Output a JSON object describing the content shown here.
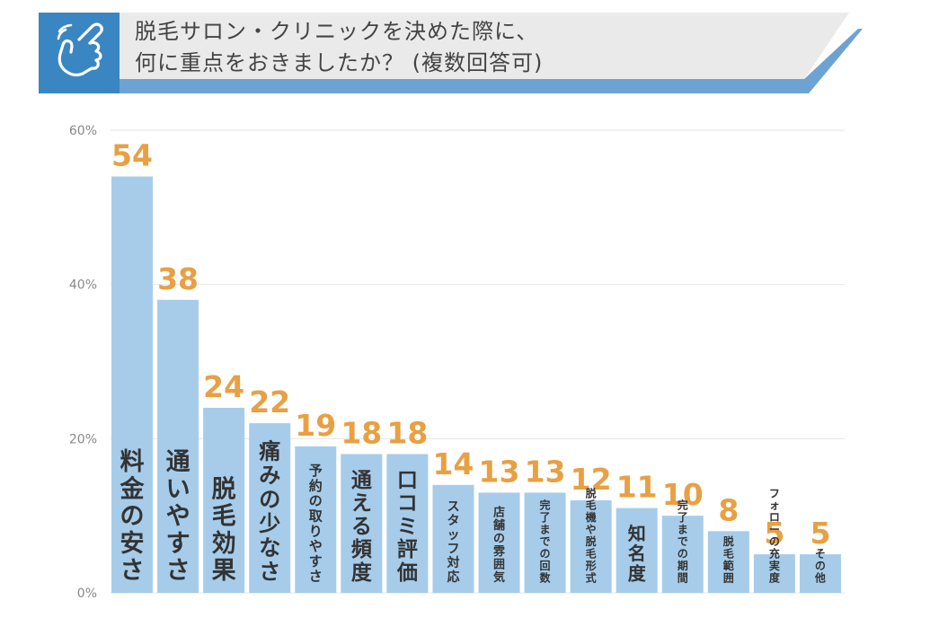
{
  "header": {
    "question_line1": "脱毛サロン・クリニックを決めた際に、",
    "question_line2": "何に重点をおきましたか？ (複数回答可)",
    "icon": "pointing-hand-icon",
    "colors": {
      "icon_bg": "#3A86C2",
      "banner_bg": "#EAEAEA",
      "banner_stripe": "#6CA3D2"
    }
  },
  "chart_data": {
    "type": "bar",
    "title": "脱毛サロン・クリニックを決めた際に、何に重点をおきましたか？ (複数回答可)",
    "xlabel": "",
    "ylabel": "",
    "ylim": [
      0,
      60
    ],
    "yticks": [
      0,
      20,
      40,
      60
    ],
    "ytick_labels": [
      "0%",
      "20%",
      "40%",
      "60%"
    ],
    "grid": true,
    "categories": [
      "料金の安さ",
      "通いやすさ",
      "脱毛効果",
      "痛みの少なさ",
      "予約の取りやすさ",
      "通える頻度",
      "口コミ評価",
      "スタッフ対応",
      "店舗の雰囲気",
      "完了までの回数",
      "脱毛機や脱毛形式",
      "知名度",
      "完了までの期間",
      "脱毛範囲",
      "フォローの充実度",
      "その他"
    ],
    "values": [
      54,
      38,
      24,
      22,
      19,
      18,
      18,
      14,
      13,
      13,
      12,
      11,
      10,
      8,
      5,
      5
    ],
    "value_labels": [
      "54",
      "38",
      "24",
      "22",
      "19",
      "18",
      "18",
      "14",
      "13",
      "13",
      "12",
      "11",
      "10",
      "8",
      "5",
      "5"
    ],
    "colors": {
      "bar": "#A6CCEA",
      "value_label": "#E8A042",
      "label": "#333333",
      "grid": "#E6E6E6",
      "axis_text": "#888888"
    }
  }
}
